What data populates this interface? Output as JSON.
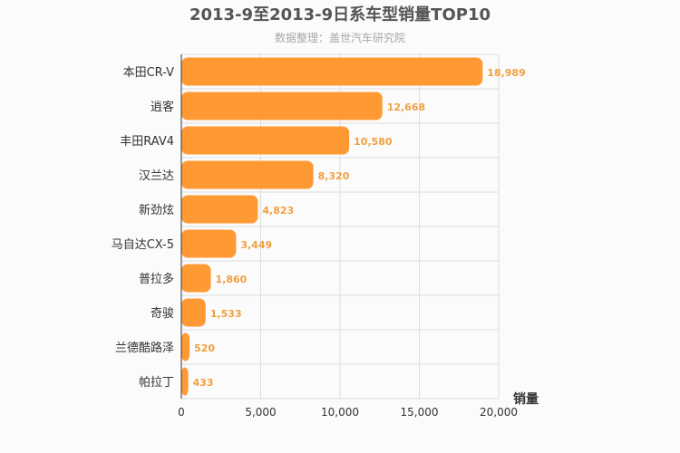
{
  "chart_data": {
    "type": "bar",
    "orientation": "horizontal",
    "title": "2013-9至2013-9日系车型销量TOP10",
    "subtitle": "数据整理：盖世汽车研究院",
    "xlabel": "销量",
    "ylabel": "",
    "categories": [
      "本田CR-V",
      "逍客",
      "丰田RAV4",
      "汉兰达",
      "新劲炫",
      "马自达CX-5",
      "普拉多",
      "奇骏",
      "兰德酷路泽",
      "帕拉丁"
    ],
    "values": [
      18989,
      12668,
      10580,
      8320,
      4823,
      3449,
      1860,
      1533,
      520,
      433
    ],
    "value_labels": [
      "18,989",
      "12,668",
      "10,580",
      "8,320",
      "4,823",
      "3,449",
      "1,860",
      "1,533",
      "520",
      "433"
    ],
    "xlim": [
      0,
      20000
    ],
    "xticks": [
      0,
      5000,
      10000,
      15000,
      20000
    ],
    "xtick_labels": [
      "0",
      "5,000",
      "10,000",
      "15,000",
      "20,000"
    ],
    "grid": true,
    "colors": {
      "bar": "#ff9933",
      "value_label": "#f0a040",
      "grid": "#dddddd"
    }
  }
}
